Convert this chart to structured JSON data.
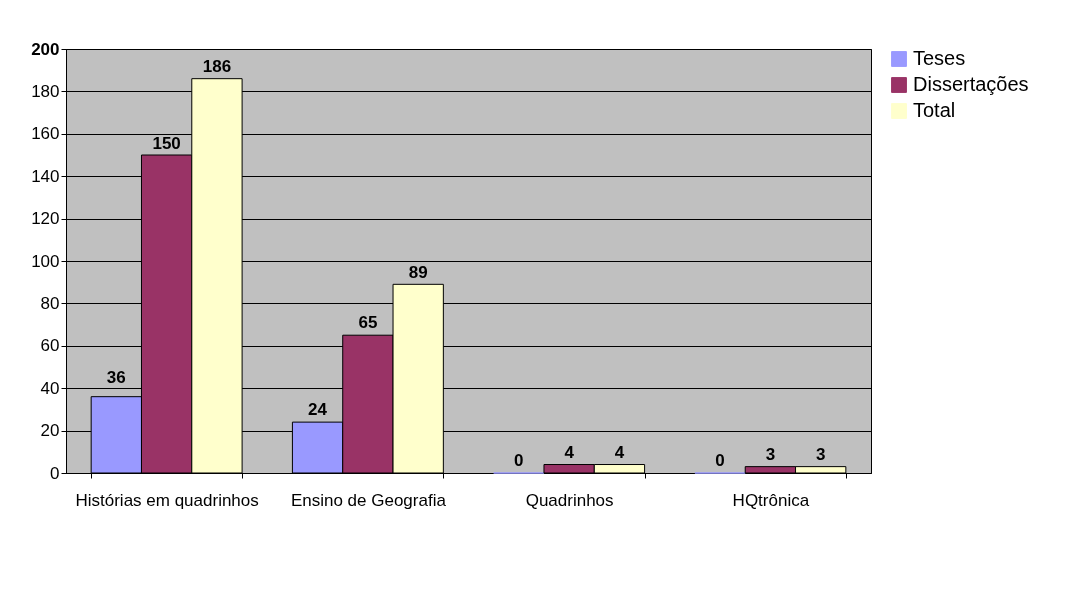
{
  "chart_data": {
    "type": "bar",
    "categories": [
      "Histórias em quadrinhos",
      "Ensino de Geografia",
      "Quadrinhos",
      "HQtrônica"
    ],
    "series": [
      {
        "name": "Teses",
        "color": "#9999ff",
        "values": [
          36,
          24,
          0,
          0
        ]
      },
      {
        "name": "Dissertações",
        "color": "#993366",
        "values": [
          150,
          65,
          4,
          3
        ]
      },
      {
        "name": "Total",
        "color": "#ffffcc",
        "values": [
          186,
          89,
          4,
          3
        ]
      }
    ],
    "ylim": [
      0,
      200
    ],
    "yticks": [
      0,
      20,
      40,
      60,
      80,
      100,
      120,
      140,
      160,
      180,
      200
    ],
    "grid": "y",
    "legend": "right",
    "data_labels": true
  }
}
